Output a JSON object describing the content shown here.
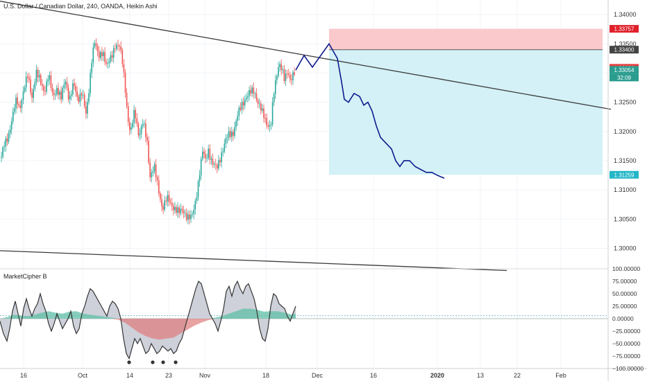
{
  "header": {
    "title": "U.S. Dollar / Canadian Dollar, 240, OANDA, Heikin Ashi"
  },
  "colors": {
    "candle_up": "#26a69a",
    "candle_down": "#ef5350",
    "trendline": "#3a3a3a",
    "projection": "#0d1a8c",
    "stop_zone": "#f9c9cc",
    "target_zone": "#d3f1f6",
    "price_stop": "#e0212a",
    "price_entry": "#444444",
    "price_current": "#e5403e",
    "price_bid": "#2a9d8f",
    "price_target": "#22b6c7"
  },
  "price_axis": {
    "ticks": [
      "1.34000",
      "1.33500",
      "1.33000",
      "1.32500",
      "1.32000",
      "1.31500",
      "1.31000",
      "1.30500",
      "1.30000"
    ],
    "badges": [
      {
        "label": "1.33757",
        "value": 1.33757,
        "role": "stop"
      },
      {
        "label": "1.33400",
        "value": 1.334,
        "role": "entry"
      },
      {
        "label": "1.33090",
        "value": 1.3309,
        "role": "current"
      },
      {
        "label": "1.33054",
        "value": 1.33054,
        "role": "bid"
      },
      {
        "label": "32:09",
        "role": "countdown"
      },
      {
        "label": "1.31259",
        "value": 1.31259,
        "role": "target"
      }
    ]
  },
  "time_axis": {
    "labels": [
      "16",
      "Oct",
      "14",
      "23",
      "Nov",
      "18",
      "Dec",
      "16",
      "2020",
      "13",
      "22",
      "Feb"
    ]
  },
  "indicator": {
    "name": "MarketCipher B",
    "ticks": [
      "100.00000",
      "75.00000",
      "50.00000",
      "25.00000",
      "0.00000",
      "−25.00000",
      "−50.00000",
      "−75.00000",
      "−100.00000"
    ]
  },
  "chart_data": [
    {
      "type": "candlestick",
      "title": "U.S. Dollar / Canadian Dollar, 240, OANDA, Heikin Ashi",
      "y_range": [
        1.2965,
        1.3425
      ],
      "price_path": [
        [
          0,
          1.3145
        ],
        [
          6,
          1.3175
        ],
        [
          12,
          1.3195
        ],
        [
          18,
          1.3225
        ],
        [
          24,
          1.3255
        ],
        [
          28,
          1.324
        ],
        [
          34,
          1.327
        ],
        [
          40,
          1.3295
        ],
        [
          46,
          1.326
        ],
        [
          52,
          1.33
        ],
        [
          58,
          1.3285
        ],
        [
          64,
          1.327
        ],
        [
          70,
          1.3295
        ],
        [
          76,
          1.326
        ],
        [
          82,
          1.3275
        ],
        [
          88,
          1.3255
        ],
        [
          94,
          1.329
        ],
        [
          100,
          1.3255
        ],
        [
          106,
          1.328
        ],
        [
          112,
          1.3255
        ],
        [
          118,
          1.327
        ],
        [
          124,
          1.3225
        ],
        [
          128,
          1.327
        ],
        [
          132,
          1.3325
        ],
        [
          136,
          1.3355
        ],
        [
          142,
          1.3325
        ],
        [
          148,
          1.334
        ],
        [
          154,
          1.331
        ],
        [
          160,
          1.3325
        ],
        [
          166,
          1.335
        ],
        [
          172,
          1.3345
        ],
        [
          176,
          1.332
        ],
        [
          180,
          1.328
        ],
        [
          184,
          1.3225
        ],
        [
          188,
          1.3195
        ],
        [
          194,
          1.3235
        ],
        [
          200,
          1.3195
        ],
        [
          206,
          1.3215
        ],
        [
          212,
          1.318
        ],
        [
          216,
          1.3125
        ],
        [
          222,
          1.314
        ],
        [
          228,
          1.31
        ],
        [
          234,
          1.307
        ],
        [
          240,
          1.3085
        ],
        [
          246,
          1.3075
        ],
        [
          252,
          1.307
        ],
        [
          258,
          1.306
        ],
        [
          264,
          1.3065
        ],
        [
          270,
          1.3055
        ],
        [
          276,
          1.305
        ],
        [
          280,
          1.307
        ],
        [
          284,
          1.31
        ],
        [
          288,
          1.3135
        ],
        [
          292,
          1.3165
        ],
        [
          296,
          1.315
        ],
        [
          300,
          1.317
        ],
        [
          306,
          1.3145
        ],
        [
          312,
          1.3135
        ],
        [
          318,
          1.316
        ],
        [
          324,
          1.318
        ],
        [
          330,
          1.3195
        ],
        [
          336,
          1.32
        ],
        [
          342,
          1.3225
        ],
        [
          348,
          1.3245
        ],
        [
          354,
          1.326
        ],
        [
          360,
          1.3265
        ],
        [
          366,
          1.327
        ],
        [
          372,
          1.325
        ],
        [
          378,
          1.323
        ],
        [
          384,
          1.3215
        ],
        [
          390,
          1.321
        ],
        [
          394,
          1.326
        ],
        [
          398,
          1.329
        ],
        [
          402,
          1.332
        ],
        [
          406,
          1.331
        ],
        [
          410,
          1.3285
        ],
        [
          414,
          1.33
        ],
        [
          418,
          1.329
        ],
        [
          422,
          1.33
        ],
        [
          426,
          1.3305
        ]
      ],
      "trendlines": [
        {
          "from": [
            0,
            1.3423
          ],
          "to": [
            880,
            1.3238
          ]
        },
        {
          "from": [
            0,
            1.2996
          ],
          "to": [
            730,
            1.2962
          ]
        }
      ],
      "projection_path": [
        [
          426,
          1.3305
        ],
        [
          438,
          1.333
        ],
        [
          450,
          1.331
        ],
        [
          462,
          1.333
        ],
        [
          474,
          1.335
        ],
        [
          486,
          1.3325
        ],
        [
          492,
          1.3285
        ],
        [
          496,
          1.3255
        ],
        [
          502,
          1.325
        ],
        [
          510,
          1.3265
        ],
        [
          518,
          1.326
        ],
        [
          524,
          1.3245
        ],
        [
          530,
          1.325
        ],
        [
          536,
          1.3235
        ],
        [
          542,
          1.321
        ],
        [
          548,
          1.319
        ],
        [
          556,
          1.318
        ],
        [
          564,
          1.317
        ],
        [
          570,
          1.315
        ],
        [
          576,
          1.314
        ],
        [
          582,
          1.315
        ],
        [
          590,
          1.315
        ],
        [
          598,
          1.314
        ],
        [
          606,
          1.3135
        ],
        [
          614,
          1.313
        ],
        [
          622,
          1.313
        ],
        [
          630,
          1.3125
        ],
        [
          640,
          1.312
        ]
      ],
      "position_zones": {
        "entry": 1.334,
        "stop": 1.33757,
        "target": 1.31259
      }
    },
    {
      "type": "area",
      "title": "MarketCipher B",
      "y_range": [
        -100,
        100
      ],
      "wave": [
        [
          0,
          -5
        ],
        [
          5,
          -30
        ],
        [
          10,
          -45
        ],
        [
          14,
          -20
        ],
        [
          18,
          15
        ],
        [
          22,
          35
        ],
        [
          26,
          10
        ],
        [
          30,
          -15
        ],
        [
          34,
          20
        ],
        [
          38,
          40
        ],
        [
          42,
          20
        ],
        [
          46,
          5
        ],
        [
          50,
          20
        ],
        [
          54,
          30
        ],
        [
          58,
          50
        ],
        [
          62,
          30
        ],
        [
          66,
          15
        ],
        [
          70,
          -10
        ],
        [
          74,
          -25
        ],
        [
          78,
          -10
        ],
        [
          82,
          10
        ],
        [
          86,
          -5
        ],
        [
          90,
          -20
        ],
        [
          94,
          -10
        ],
        [
          98,
          0
        ],
        [
          102,
          15
        ],
        [
          106,
          -15
        ],
        [
          110,
          -30
        ],
        [
          114,
          -20
        ],
        [
          118,
          10
        ],
        [
          122,
          25
        ],
        [
          126,
          45
        ],
        [
          130,
          60
        ],
        [
          134,
          55
        ],
        [
          138,
          45
        ],
        [
          142,
          35
        ],
        [
          146,
          25
        ],
        [
          150,
          15
        ],
        [
          154,
          5
        ],
        [
          158,
          25
        ],
        [
          162,
          35
        ],
        [
          166,
          30
        ],
        [
          170,
          20
        ],
        [
          174,
          0
        ],
        [
          178,
          -40
        ],
        [
          182,
          -70
        ],
        [
          186,
          -80
        ],
        [
          190,
          -60
        ],
        [
          194,
          -40
        ],
        [
          198,
          -50
        ],
        [
          202,
          -40
        ],
        [
          206,
          -55
        ],
        [
          210,
          -70
        ],
        [
          214,
          -65
        ],
        [
          218,
          -50
        ],
        [
          222,
          -60
        ],
        [
          226,
          -70
        ],
        [
          230,
          -65
        ],
        [
          234,
          -55
        ],
        [
          238,
          -60
        ],
        [
          242,
          -65
        ],
        [
          246,
          -60
        ],
        [
          250,
          -70
        ],
        [
          254,
          -65
        ],
        [
          258,
          -50
        ],
        [
          262,
          -40
        ],
        [
          266,
          -20
        ],
        [
          270,
          0
        ],
        [
          274,
          20
        ],
        [
          278,
          40
        ],
        [
          282,
          60
        ],
        [
          286,
          75
        ],
        [
          290,
          70
        ],
        [
          294,
          50
        ],
        [
          298,
          30
        ],
        [
          302,
          10
        ],
        [
          306,
          0
        ],
        [
          310,
          -10
        ],
        [
          314,
          -25
        ],
        [
          318,
          -5
        ],
        [
          322,
          20
        ],
        [
          326,
          55
        ],
        [
          330,
          65
        ],
        [
          334,
          45
        ],
        [
          338,
          65
        ],
        [
          342,
          75
        ],
        [
          346,
          60
        ],
        [
          350,
          50
        ],
        [
          354,
          65
        ],
        [
          358,
          70
        ],
        [
          362,
          55
        ],
        [
          366,
          40
        ],
        [
          370,
          15
        ],
        [
          374,
          -20
        ],
        [
          378,
          -40
        ],
        [
          382,
          -45
        ],
        [
          386,
          -20
        ],
        [
          390,
          25
        ],
        [
          394,
          50
        ],
        [
          398,
          45
        ],
        [
          402,
          30
        ],
        [
          406,
          25
        ],
        [
          410,
          20
        ],
        [
          414,
          5
        ],
        [
          418,
          -5
        ],
        [
          422,
          10
        ],
        [
          426,
          25
        ]
      ],
      "money_flow": [
        [
          0,
          0
        ],
        [
          10,
          3
        ],
        [
          20,
          8
        ],
        [
          30,
          6
        ],
        [
          40,
          5
        ],
        [
          50,
          8
        ],
        [
          60,
          12
        ],
        [
          70,
          15
        ],
        [
          80,
          12
        ],
        [
          90,
          10
        ],
        [
          100,
          14
        ],
        [
          110,
          15
        ],
        [
          120,
          10
        ],
        [
          130,
          8
        ],
        [
          140,
          6
        ],
        [
          150,
          4
        ],
        [
          160,
          2
        ],
        [
          170,
          -2
        ],
        [
          180,
          -8
        ],
        [
          190,
          -18
        ],
        [
          200,
          -28
        ],
        [
          210,
          -35
        ],
        [
          220,
          -40
        ],
        [
          230,
          -42
        ],
        [
          240,
          -40
        ],
        [
          250,
          -38
        ],
        [
          260,
          -30
        ],
        [
          270,
          -22
        ],
        [
          280,
          -14
        ],
        [
          290,
          -8
        ],
        [
          300,
          -3
        ],
        [
          310,
          2
        ],
        [
          320,
          5
        ],
        [
          330,
          10
        ],
        [
          340,
          15
        ],
        [
          350,
          20
        ],
        [
          360,
          20
        ],
        [
          370,
          18
        ],
        [
          380,
          14
        ],
        [
          390,
          15
        ],
        [
          400,
          15
        ],
        [
          410,
          12
        ],
        [
          420,
          8
        ],
        [
          426,
          10
        ]
      ],
      "dots": [
        [
          186,
          -75
        ],
        [
          220,
          -75
        ],
        [
          235,
          -75
        ],
        [
          253,
          -75
        ]
      ],
      "reference_levels": [
        6,
        0
      ]
    }
  ]
}
